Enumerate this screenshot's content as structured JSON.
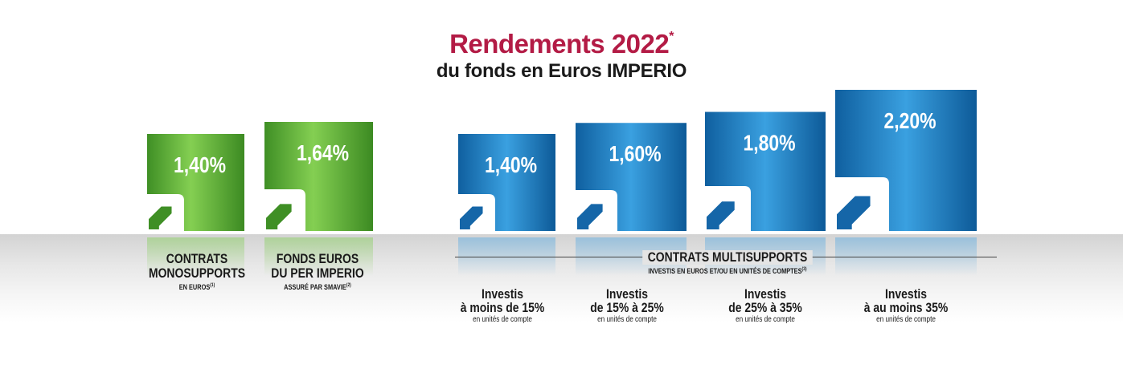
{
  "header": {
    "title": "Rendements 2022",
    "title_mark": "*",
    "subtitle": "du fonds en Euros IMPERIO"
  },
  "colors": {
    "title": "#b31b45",
    "green": "#5aa734",
    "blue": "#1e7fc4"
  },
  "chart_data": {
    "type": "bar",
    "categories": [
      "Contrats monosupports en euros",
      "Fonds euros du PER Imperio",
      "Investis à moins de 15%",
      "Investis de 15% à 25%",
      "Investis de 25% à 35%",
      "Investis à au moins 35%"
    ],
    "values": [
      1.4,
      1.64,
      1.4,
      1.6,
      1.8,
      2.2
    ],
    "value_labels": [
      "1,40%",
      "1,64%",
      "1,40%",
      "1,60%",
      "1,80%",
      "2,20%"
    ],
    "bar_colors": [
      "green",
      "green",
      "blue",
      "blue",
      "blue",
      "blue"
    ],
    "unit": "%"
  },
  "captions": {
    "mono": {
      "l1": "CONTRATS",
      "l2": "MONOSUPPORTS",
      "sm": "EN EUROS",
      "note": "(1)"
    },
    "per": {
      "l1": "FONDS EUROS",
      "l2": "DU PER IMPERIO",
      "sm": "ASSURÉ PAR SMAVIE",
      "note": "(2)"
    },
    "multi": {
      "l1": "CONTRATS MULTISUPPORTS",
      "sm": "INVESTIS EN EUROS ET/OU EN UNITÉS DE COMPTES",
      "note": "(3)"
    },
    "inv1": {
      "l1": "Investis",
      "l2": "à moins de 15%",
      "sm": "en unités de compte"
    },
    "inv2": {
      "l1": "Investis",
      "l2": "de 15% à 25%",
      "sm": "en unités de compte"
    },
    "inv3": {
      "l1": "Investis",
      "l2": "de 25% à 35%",
      "sm": "en unités de compte"
    },
    "inv4": {
      "l1": "Investis",
      "l2": "à au moins 35%",
      "sm": "en unités de compte"
    }
  }
}
